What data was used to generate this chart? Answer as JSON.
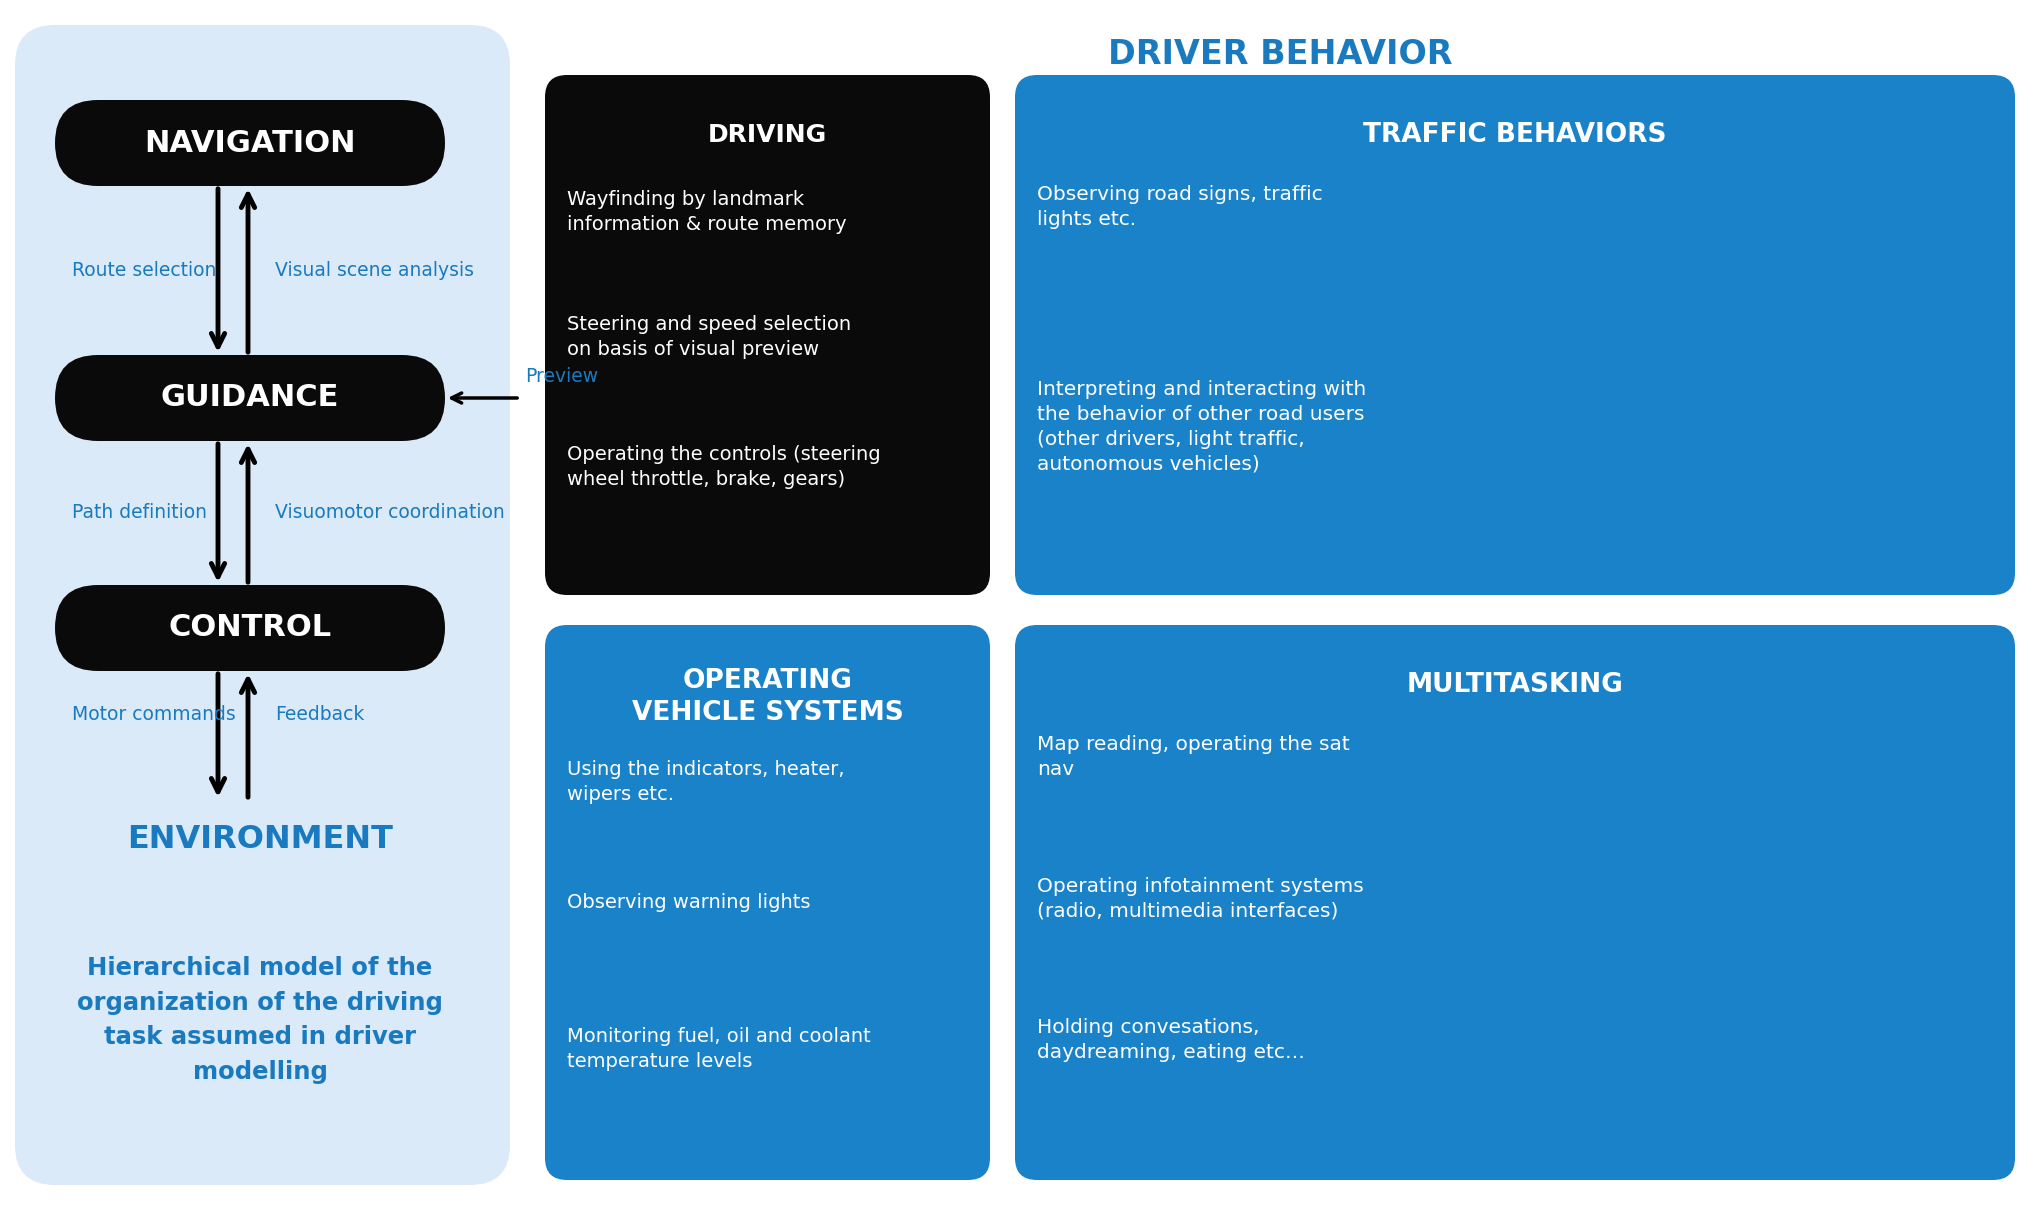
{
  "bg_color": "#ffffff",
  "light_blue_bg": "#daeaf8",
  "dark_blue": "#1a7abf",
  "black_box": "#0a0a0a",
  "white": "#ffffff",
  "blue_box": "#1a82c8",
  "title": "DRIVER BEHAVIOR",
  "nav_label": "NAVIGATION",
  "gui_label": "GUIDANCE",
  "ctrl_label": "CONTROL",
  "left_labels": [
    "Route selection",
    "Path definition",
    "Motor commands"
  ],
  "right_labels": [
    "Visual scene analysis",
    "Visuomotor coordination",
    "Feedback"
  ],
  "preview_label": "Preview",
  "environment_label": "ENVIRONMENT",
  "caption": "Hierarchical model of the\norganization of the driving\ntask assumed in driver\nmodelling",
  "driving_title": "DRIVING",
  "driving_items": [
    {
      "bold": "Wayfinding",
      "rest": " by landmark\ninformation & route memory"
    },
    {
      "bold": "Steering",
      "rest": " and ",
      "bold2": "speed selection",
      "rest2": "\non basis of visual preview"
    },
    {
      "bold": "Operating",
      "rest": " the controls (steering\nwheel throttle, brake, gears)"
    }
  ],
  "traffic_title": "TRAFFIC BEHAVIORS",
  "traffic_items": [
    "Observing road signs, traffic\nlights etc.",
    "Interpreting and interacting with\nthe behavior of other road users\n(other drivers, light traffic,\nautonomous vehicles)"
  ],
  "operating_title": "OPERATING\nVEHICLE SYSTEMS",
  "operating_items": [
    "Using the indicators, heater,\nwipers etc.",
    "Observing warning lights",
    "Monitoring fuel, oil and coolant\ntemperature levels"
  ],
  "multitasking_title": "MULTITASKING",
  "multitasking_items": [
    "Map reading, operating the sat\nnav",
    "Operating infotainment systems\n(radio, multimedia interfaces)",
    "Holding convesations,\ndaydreaming, eating etc…"
  ]
}
